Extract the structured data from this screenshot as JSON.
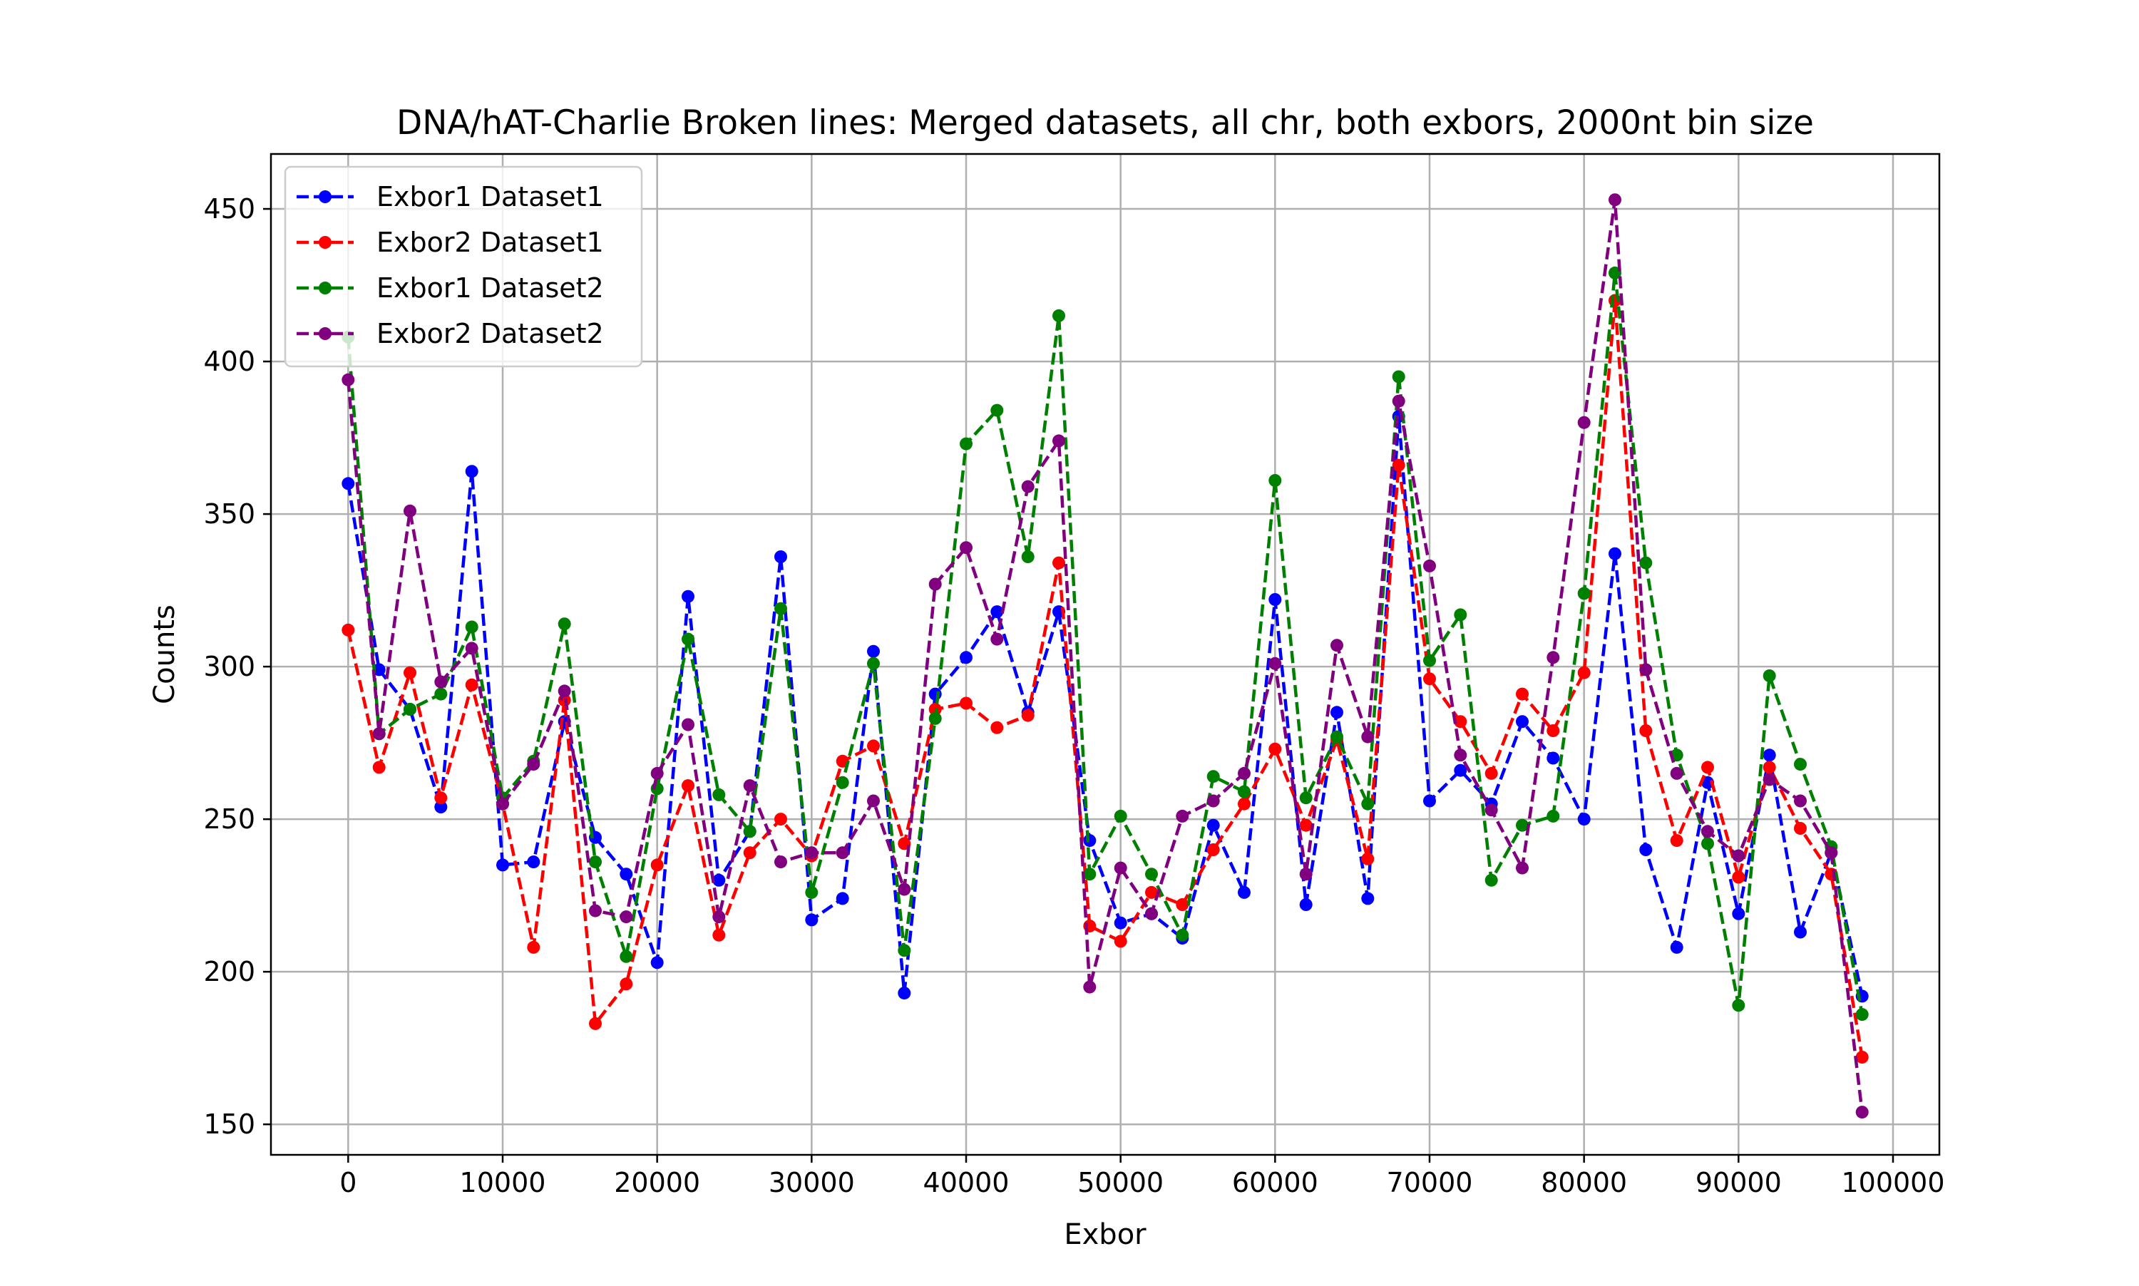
{
  "chart_data": {
    "type": "line",
    "title": "DNA/hAT-Charlie Broken lines: Merged datasets, all chr, both exbors, 2000nt bin size",
    "xlabel": "Exbor",
    "ylabel": "Counts",
    "xlim": [
      -5000,
      103000
    ],
    "ylim": [
      140,
      468
    ],
    "xticks": [
      0,
      10000,
      20000,
      30000,
      40000,
      50000,
      60000,
      70000,
      80000,
      90000,
      100000
    ],
    "yticks": [
      150,
      200,
      250,
      300,
      350,
      400,
      450
    ],
    "grid": true,
    "legend_position": "upper-left",
    "x": [
      0,
      2000,
      4000,
      6000,
      8000,
      10000,
      12000,
      14000,
      16000,
      18000,
      20000,
      22000,
      24000,
      26000,
      28000,
      30000,
      32000,
      34000,
      36000,
      38000,
      40000,
      42000,
      44000,
      46000,
      48000,
      50000,
      52000,
      54000,
      56000,
      58000,
      60000,
      62000,
      64000,
      66000,
      68000,
      70000,
      72000,
      74000,
      76000,
      78000,
      80000,
      82000,
      84000,
      86000,
      88000,
      90000,
      92000,
      94000,
      96000,
      98000
    ],
    "series": [
      {
        "name": "Exbor1 Dataset1",
        "color": "#0000ff",
        "values": [
          360,
          299,
          286,
          254,
          364,
          235,
          236,
          282,
          244,
          232,
          203,
          323,
          230,
          246,
          336,
          217,
          224,
          305,
          193,
          291,
          303,
          318,
          285,
          318,
          243,
          216,
          219,
          211,
          248,
          226,
          322,
          222,
          285,
          224,
          382,
          256,
          266,
          255,
          282,
          270,
          250,
          337,
          240,
          208,
          262,
          219,
          271,
          213,
          239,
          192
        ]
      },
      {
        "name": "Exbor2 Dataset1",
        "color": "#ff0000",
        "values": [
          312,
          267,
          298,
          257,
          294,
          255,
          208,
          289,
          183,
          196,
          235,
          261,
          212,
          239,
          250,
          238,
          269,
          274,
          242,
          286,
          288,
          280,
          284,
          334,
          215,
          210,
          226,
          222,
          240,
          255,
          273,
          248,
          276,
          237,
          366,
          296,
          282,
          265,
          291,
          279,
          298,
          420,
          279,
          243,
          267,
          231,
          267,
          247,
          232,
          172
        ]
      },
      {
        "name": "Exbor1 Dataset2",
        "color": "#008000",
        "values": [
          408,
          278,
          286,
          291,
          313,
          257,
          269,
          314,
          236,
          205,
          260,
          309,
          258,
          246,
          319,
          226,
          262,
          301,
          207,
          283,
          373,
          384,
          336,
          415,
          232,
          251,
          232,
          212,
          264,
          259,
          361,
          257,
          277,
          255,
          395,
          302,
          317,
          230,
          248,
          251,
          324,
          429,
          334,
          271,
          242,
          189,
          297,
          268,
          241,
          186
        ]
      },
      {
        "name": "Exbor2 Dataset2",
        "color": "#800080",
        "values": [
          394,
          278,
          351,
          295,
          306,
          255,
          268,
          292,
          220,
          218,
          265,
          281,
          218,
          261,
          236,
          239,
          239,
          256,
          227,
          327,
          339,
          309,
          359,
          374,
          195,
          234,
          219,
          251,
          256,
          265,
          301,
          232,
          307,
          277,
          387,
          333,
          271,
          253,
          234,
          303,
          380,
          453,
          299,
          265,
          246,
          238,
          263,
          256,
          239,
          154
        ]
      }
    ]
  }
}
